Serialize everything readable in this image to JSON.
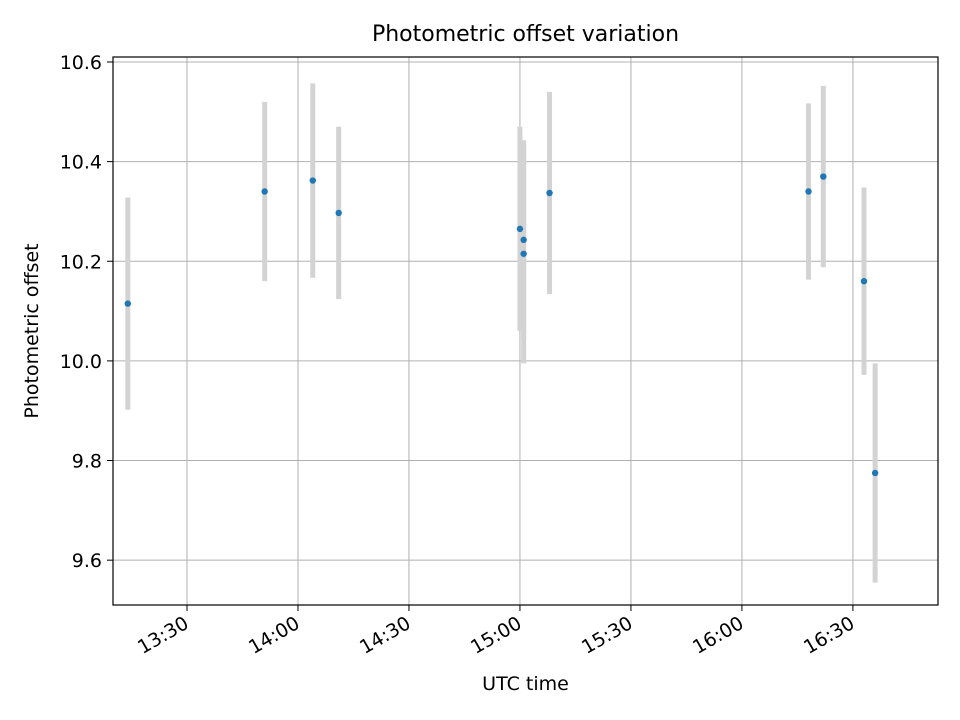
{
  "chart_data": {
    "type": "scatter",
    "title": "Photometric offset variation",
    "xlabel": "UTC time",
    "ylabel": "Photometric offset",
    "xlim": [
      "13:10",
      "16:53"
    ],
    "ylim": [
      9.51,
      10.61
    ],
    "x_ticks": [
      "13:30",
      "14:00",
      "14:30",
      "15:00",
      "15:30",
      "16:00",
      "16:30"
    ],
    "y_ticks": [
      9.6,
      9.8,
      10.0,
      10.2,
      10.4,
      10.6
    ],
    "y_tick_labels": [
      "9.6",
      "9.8",
      "10.0",
      "10.2",
      "10.4",
      "10.6"
    ],
    "grid": true,
    "marker_color": "#1f77b4",
    "errorbar_color": "#d3d3d3",
    "points": [
      {
        "x": "13:14",
        "y": 10.115,
        "yerr": 0.213
      },
      {
        "x": "13:51",
        "y": 10.34,
        "yerr": 0.18
      },
      {
        "x": "14:04",
        "y": 10.362,
        "yerr": 0.195
      },
      {
        "x": "14:11",
        "y": 10.297,
        "yerr": 0.173
      },
      {
        "x": "15:00",
        "y": 10.265,
        "yerr": 0.205
      },
      {
        "x": "15:01",
        "y": 10.243,
        "yerr": 0.2
      },
      {
        "x": "15:01",
        "y": 10.215,
        "yerr": 0.22
      },
      {
        "x": "15:08",
        "y": 10.337,
        "yerr": 0.203
      },
      {
        "x": "16:18",
        "y": 10.34,
        "yerr": 0.177
      },
      {
        "x": "16:22",
        "y": 10.37,
        "yerr": 0.182
      },
      {
        "x": "16:33",
        "y": 10.16,
        "yerr": 0.188
      },
      {
        "x": "16:36",
        "y": 9.775,
        "yerr": 0.22
      }
    ]
  }
}
